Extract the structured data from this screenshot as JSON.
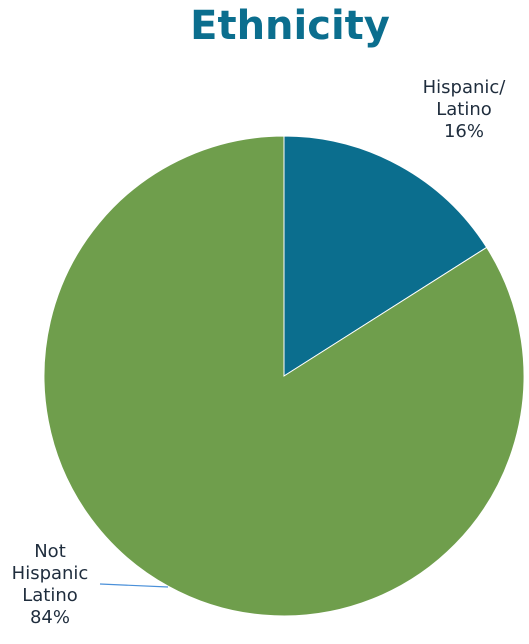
{
  "chart_data": {
    "type": "pie",
    "title": "Ethnicity",
    "slices": [
      {
        "label_lines": [
          "Hispanic/",
          "Latino"
        ],
        "percent_label": "16%",
        "value": 16,
        "color": "#0b6e8e"
      },
      {
        "label_lines": [
          "Not",
          "Hispanic",
          "Latino"
        ],
        "percent_label": "84%",
        "value": 84,
        "color": "#6f9e4c"
      }
    ],
    "leader_line_color": "#4a90d9",
    "start_angle": "12 o'clock",
    "direction": "clockwise"
  }
}
